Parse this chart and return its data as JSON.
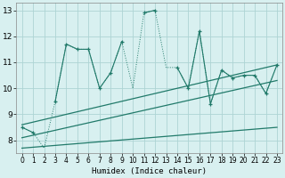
{
  "xlabel": "Humidex (Indice chaleur)",
  "x": [
    0,
    1,
    2,
    3,
    4,
    5,
    6,
    7,
    8,
    9,
    10,
    11,
    12,
    13,
    14,
    15,
    16,
    17,
    18,
    19,
    20,
    21,
    22,
    23
  ],
  "line_main": [
    8.5,
    8.3,
    null,
    9.5,
    11.7,
    11.5,
    11.5,
    10.0,
    10.6,
    11.8,
    null,
    12.9,
    13.0,
    null,
    10.8,
    10.0,
    12.2,
    9.4,
    10.7,
    10.4,
    10.5,
    10.5,
    9.8,
    10.9
  ],
  "line_dot": [
    8.5,
    8.3,
    7.7,
    9.5,
    11.7,
    11.5,
    11.5,
    10.0,
    10.6,
    11.8,
    10.0,
    12.9,
    13.0,
    10.8,
    10.8,
    10.0,
    12.2,
    9.4,
    10.7,
    10.4,
    10.5,
    10.5,
    9.8,
    10.9
  ],
  "trend1_x": [
    0,
    23
  ],
  "trend1_y": [
    8.6,
    10.9
  ],
  "trend2_x": [
    0,
    23
  ],
  "trend2_y": [
    8.1,
    10.3
  ],
  "trend3_x": [
    0,
    23
  ],
  "trend3_y": [
    7.7,
    8.5
  ],
  "color": "#217a6a",
  "bg_color": "#d8f0f0",
  "grid_color": "#aed4d4",
  "xlim": [
    -0.5,
    23.5
  ],
  "ylim": [
    7.5,
    13.3
  ],
  "yticks": [
    8,
    9,
    10,
    11,
    12,
    13
  ],
  "xticks": [
    0,
    1,
    2,
    3,
    4,
    5,
    6,
    7,
    8,
    9,
    10,
    11,
    12,
    13,
    14,
    15,
    16,
    17,
    18,
    19,
    20,
    21,
    22,
    23
  ]
}
